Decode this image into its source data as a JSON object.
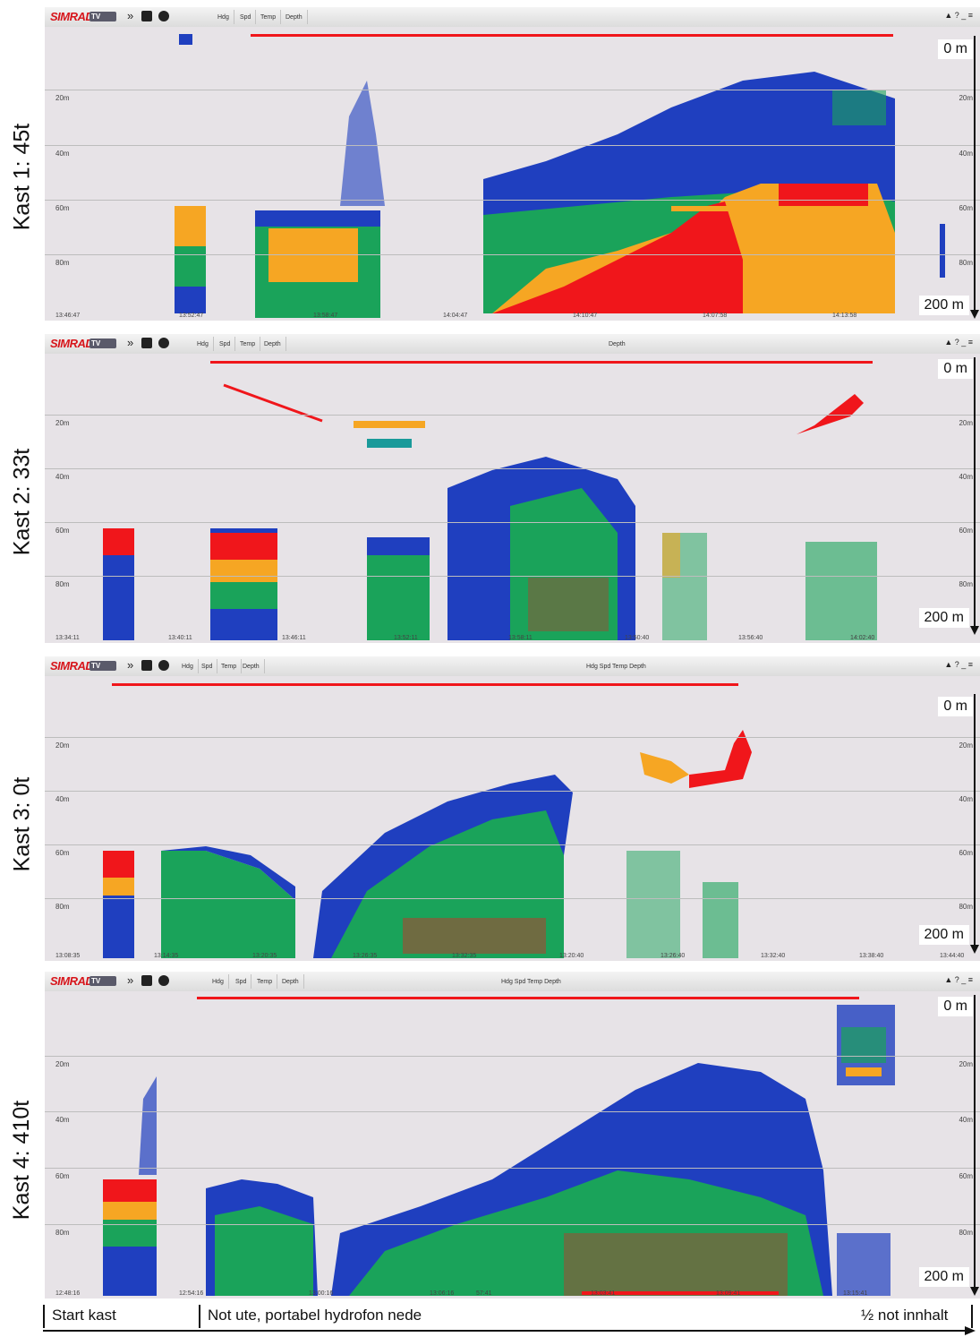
{
  "panels": [
    {
      "kast_label": "Kast 1: 45t",
      "times": [
        "13:46:47",
        "13:52:47",
        "13:58:47",
        "14:04:47",
        "14:10:47",
        "14:07:58",
        "14:13:58"
      ],
      "toolbar": {
        "brand": "SIMRAD",
        "badge": "TV",
        "buttons": [
          "Hdg",
          "Spd",
          "Temp",
          "Depth"
        ],
        "extra": ""
      }
    },
    {
      "kast_label": "Kast 2: 33t",
      "times": [
        "13:34:11",
        "13:40:11",
        "13:46:11",
        "13:52:11",
        "13:58:11",
        "13:50:40",
        "13:56:40",
        "14:02:40"
      ],
      "toolbar": {
        "brand": "SIMRAD",
        "badge": "TV",
        "buttons": [
          "Hdg",
          "Spd",
          "Temp",
          "Depth"
        ],
        "extra": "Depth"
      }
    },
    {
      "kast_label": "Kast 3: 0t",
      "times": [
        "13:08:35",
        "13:14:35",
        "13:20:35",
        "13:26:35",
        "13:32:35",
        "13:20:40",
        "13:26:40",
        "13:32:40",
        "13:38:40",
        "13:44:40"
      ],
      "toolbar": {
        "brand": "SIMRAD",
        "badge": "TV",
        "buttons": [
          "Hdg",
          "Spd",
          "Temp",
          "Depth"
        ],
        "extra": "Hdg  Spd  Temp  Depth"
      }
    },
    {
      "kast_label": "Kast 4: 410t",
      "times": [
        "12:48:16",
        "12:54:16",
        "13:00:16",
        "13:06:16",
        "57:41",
        "13:03:41",
        "13:09:41",
        "13:15:41"
      ],
      "toolbar": {
        "brand": "SIMRAD",
        "badge": "TV",
        "buttons": [
          "Hdg",
          "Spd",
          "Temp",
          "Depth"
        ],
        "extra": "Hdg  Spd  Temp  Depth"
      }
    }
  ],
  "depth_labels": [
    "20m",
    "40m",
    "60m",
    "80m"
  ],
  "axis": {
    "top": "0 m",
    "bottom": "200 m"
  },
  "timeline": {
    "start": "Start kast",
    "middle": "Not ute, portabel hydrofon nede",
    "end": "½ not innhalt"
  },
  "toolbar_right": "▲ ? _ ≡",
  "colors": {
    "background": "#e7e3e7",
    "red": "#f0161b",
    "orange": "#f6a623",
    "green": "#1aa35a",
    "blue": "#1f3fbf",
    "teal": "#1a9a9a"
  }
}
